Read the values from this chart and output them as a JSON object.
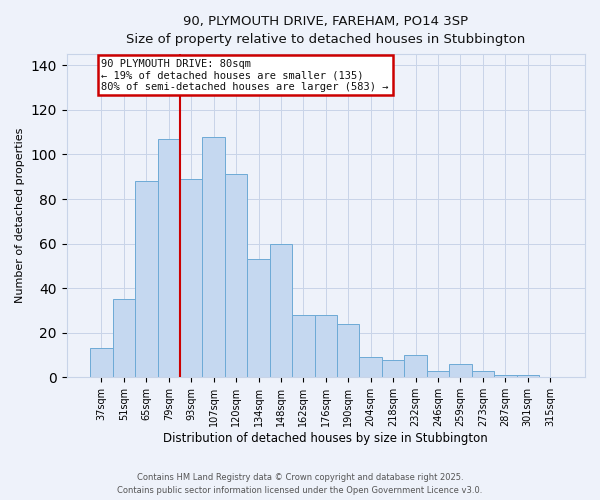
{
  "title_line1": "90, PLYMOUTH DRIVE, FAREHAM, PO14 3SP",
  "title_line2": "Size of property relative to detached houses in Stubbington",
  "xlabel": "Distribution of detached houses by size in Stubbington",
  "ylabel": "Number of detached properties",
  "bar_labels": [
    "37sqm",
    "51sqm",
    "65sqm",
    "79sqm",
    "93sqm",
    "107sqm",
    "120sqm",
    "134sqm",
    "148sqm",
    "162sqm",
    "176sqm",
    "190sqm",
    "204sqm",
    "218sqm",
    "232sqm",
    "246sqm",
    "259sqm",
    "273sqm",
    "287sqm",
    "301sqm",
    "315sqm"
  ],
  "bar_heights": [
    13,
    35,
    88,
    107,
    89,
    108,
    91,
    53,
    60,
    28,
    28,
    24,
    9,
    8,
    10,
    3,
    6,
    3,
    1,
    1,
    0
  ],
  "bar_color": "#c5d8f0",
  "bar_edge_color": "#6daad6",
  "ylim": [
    0,
    145
  ],
  "yticks": [
    0,
    20,
    40,
    60,
    80,
    100,
    120,
    140
  ],
  "red_line_index": 3,
  "annotation_title": "90 PLYMOUTH DRIVE: 80sqm",
  "annotation_line2": "← 19% of detached houses are smaller (135)",
  "annotation_line3": "80% of semi-detached houses are larger (583) →",
  "annotation_box_color": "#ffffff",
  "annotation_box_edge": "#cc0000",
  "red_line_color": "#cc0000",
  "footer_line1": "Contains HM Land Registry data © Crown copyright and database right 2025.",
  "footer_line2": "Contains public sector information licensed under the Open Government Licence v3.0.",
  "bg_color": "#eef2fa",
  "grid_color": "#c8d4e8"
}
